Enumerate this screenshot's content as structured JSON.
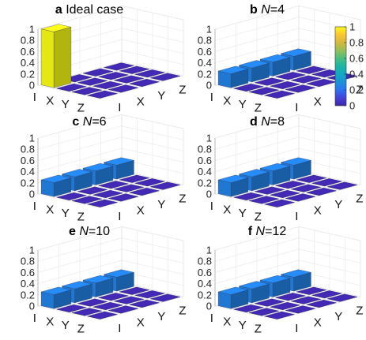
{
  "colorbar": {
    "ticks": [
      0,
      0.2,
      0.4,
      0.6,
      0.8,
      1
    ],
    "tick_labels": [
      "0",
      "0.2",
      "0.4",
      "0.6",
      "0.8",
      "1"
    ],
    "range": [
      0,
      1
    ],
    "colormap": "parula"
  },
  "chart_data": [
    {
      "type": "bar3d",
      "title_prefix": "a",
      "title_text": "Ideal case",
      "title_italic": "",
      "zlim": [
        0,
        1
      ],
      "z_ticks": [
        "0",
        "0.2",
        "0.4",
        "0.6",
        "0.8",
        "1"
      ],
      "row_labels": [
        "I",
        "X",
        "Y",
        "Z"
      ],
      "col_labels": [
        "I",
        "X",
        "Y",
        "Z"
      ],
      "values": [
        [
          1,
          0,
          0,
          0
        ],
        [
          0,
          0,
          0,
          0
        ],
        [
          0,
          0,
          0,
          0
        ],
        [
          0,
          0,
          0,
          0
        ]
      ]
    },
    {
      "type": "bar3d",
      "title_prefix": "b",
      "title_text": "=4",
      "title_italic": "N",
      "zlim": [
        0,
        1
      ],
      "z_ticks": [
        "0",
        "0.2",
        "0.4",
        "0.6",
        "0.8",
        "1"
      ],
      "row_labels": [
        "I",
        "X",
        "Y",
        "Z"
      ],
      "col_labels": [
        "I",
        "X",
        "Y",
        "Z"
      ],
      "values": [
        [
          0.25,
          0.25,
          0.25,
          0.25
        ],
        [
          0,
          0,
          0,
          0
        ],
        [
          0,
          0,
          0,
          0
        ],
        [
          0,
          0,
          0,
          0
        ]
      ]
    },
    {
      "type": "bar3d",
      "title_prefix": "c",
      "title_text": "=6",
      "title_italic": "N",
      "zlim": [
        0,
        1
      ],
      "z_ticks": [
        "0",
        "0.2",
        "0.4",
        "0.6",
        "0.8",
        "1"
      ],
      "row_labels": [
        "I",
        "X",
        "Y",
        "Z"
      ],
      "col_labels": [
        "I",
        "X",
        "Y",
        "Z"
      ],
      "values": [
        [
          0.25,
          0.25,
          0.25,
          0.25
        ],
        [
          0,
          0,
          0,
          0
        ],
        [
          0,
          0,
          0,
          0
        ],
        [
          0,
          0,
          0,
          0
        ]
      ]
    },
    {
      "type": "bar3d",
      "title_prefix": "d",
      "title_text": "=8",
      "title_italic": "N",
      "zlim": [
        0,
        1
      ],
      "z_ticks": [
        "0",
        "0.2",
        "0.4",
        "0.6",
        "0.8",
        "1"
      ],
      "row_labels": [
        "I",
        "X",
        "Y",
        "Z"
      ],
      "col_labels": [
        "I",
        "X",
        "Y",
        "Z"
      ],
      "values": [
        [
          0.25,
          0.25,
          0.25,
          0.25
        ],
        [
          0,
          0,
          0,
          0
        ],
        [
          0,
          0,
          0,
          0
        ],
        [
          0,
          0,
          0,
          0
        ]
      ]
    },
    {
      "type": "bar3d",
      "title_prefix": "e",
      "title_text": "=10",
      "title_italic": "N",
      "zlim": [
        0,
        1
      ],
      "z_ticks": [
        "0",
        "0.2",
        "0.4",
        "0.6",
        "0.8",
        "1"
      ],
      "row_labels": [
        "I",
        "X",
        "Y",
        "Z"
      ],
      "col_labels": [
        "I",
        "X",
        "Y",
        "Z"
      ],
      "values": [
        [
          0.25,
          0.25,
          0.25,
          0.25
        ],
        [
          0,
          0,
          0,
          0
        ],
        [
          0,
          0,
          0,
          0
        ],
        [
          0,
          0,
          0,
          0
        ]
      ]
    },
    {
      "type": "bar3d",
      "title_prefix": "f",
      "title_text": "=12",
      "title_italic": "N",
      "zlim": [
        0,
        1
      ],
      "z_ticks": [
        "0",
        "0.2",
        "0.4",
        "0.6",
        "0.8",
        "1"
      ],
      "row_labels": [
        "I",
        "X",
        "Y",
        "Z"
      ],
      "col_labels": [
        "I",
        "X",
        "Y",
        "Z"
      ],
      "values": [
        [
          0.25,
          0.25,
          0.25,
          0.25
        ],
        [
          0,
          0,
          0,
          0
        ],
        [
          0,
          0,
          0,
          0
        ],
        [
          0,
          0,
          0,
          0
        ]
      ]
    }
  ]
}
